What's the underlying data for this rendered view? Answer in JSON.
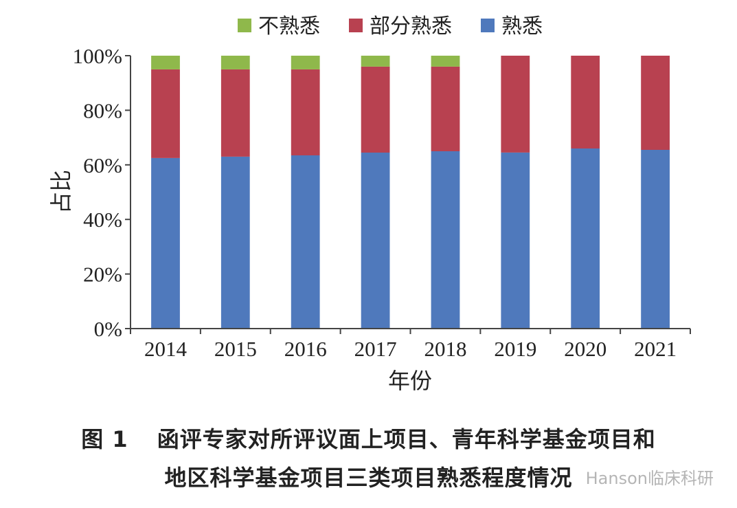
{
  "chart_data": {
    "type": "bar",
    "stacked": true,
    "categories": [
      "2014",
      "2015",
      "2016",
      "2017",
      "2018",
      "2019",
      "2020",
      "2021"
    ],
    "series": [
      {
        "name": "熟悉",
        "color": "#4f79bc",
        "values": [
          62.5,
          63,
          63.5,
          64.5,
          65,
          64.5,
          66,
          65.5
        ]
      },
      {
        "name": "部分熟悉",
        "color": "#b84150",
        "values": [
          32.5,
          32,
          31.5,
          31.5,
          31,
          35.5,
          34,
          34.5
        ]
      },
      {
        "name": "不熟悉",
        "color": "#8fb84b",
        "values": [
          5,
          5,
          5,
          4,
          4,
          0,
          0,
          0
        ]
      }
    ],
    "legend_order": [
      "不熟悉",
      "部分熟悉",
      "熟悉"
    ],
    "legend_position": "top",
    "ylim": [
      0,
      100
    ],
    "yticks": [
      "0%",
      "20%",
      "40%",
      "60%",
      "80%",
      "100%"
    ],
    "xlabel": "年份",
    "ylabel": "占比"
  },
  "caption": {
    "number": "图 1",
    "line1": "函评专家对所评议面上项目、青年科学基金项目和",
    "line2": "地区科学基金项目三类项目熟悉程度情况"
  },
  "watermark": "Hanson临床科研"
}
